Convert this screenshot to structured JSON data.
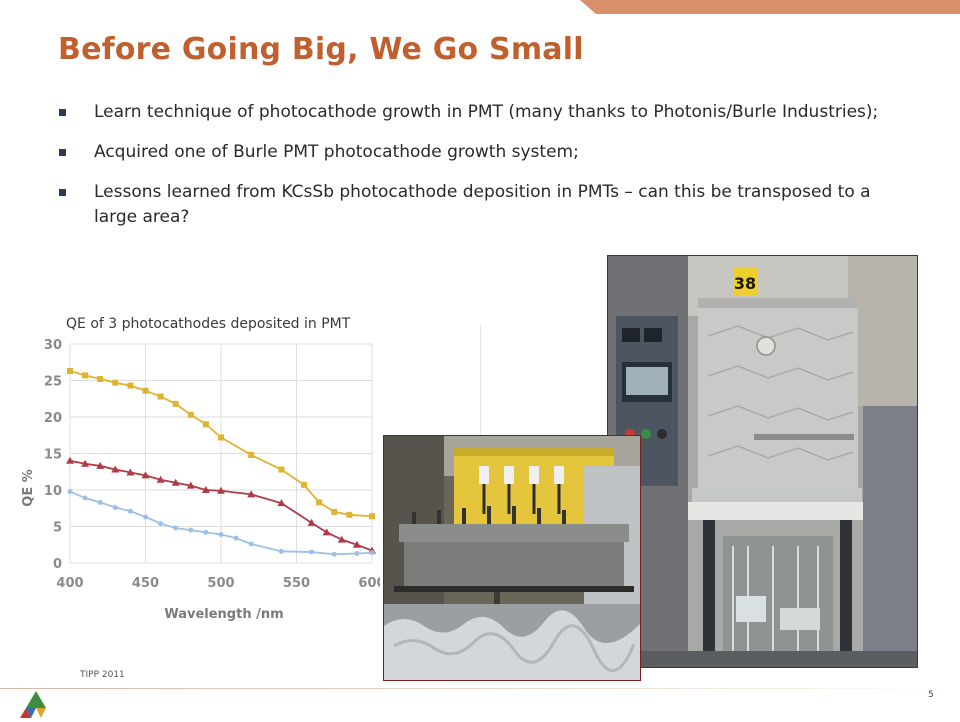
{
  "slide": {
    "title": "Before Going Big, We Go Small",
    "bullets": [
      "Learn technique of photocathode growth in PMT (many thanks to Photonis/Burle Industries);",
      "Acquired one of Burle PMT photocathode growth system;",
      "Lessons learned from KCsSb photocathode deposition in PMTs – can this be transposed to a large area?"
    ],
    "photo_label": "38",
    "footer": "TIPP 2011",
    "page_number": "5",
    "accent_color": "#c1602f"
  },
  "chart_data": {
    "type": "line",
    "caption": "QE of 3 photocathodes deposited in PMT",
    "xlabel": "Wavelength /nm",
    "ylabel": "QE %",
    "xlim": [
      400,
      600
    ],
    "ylim": [
      0,
      30
    ],
    "xticks": [
      400,
      450,
      500,
      550,
      600
    ],
    "yticks": [
      0,
      5,
      10,
      15,
      20,
      25,
      30
    ],
    "grid": true,
    "series": [
      {
        "color": "#e0b330",
        "x": [
          400,
          410,
          420,
          430,
          440,
          450,
          460,
          470,
          480,
          490,
          500,
          520,
          540,
          555,
          565,
          575,
          585,
          600
        ],
        "y": [
          26.3,
          25.7,
          25.2,
          24.7,
          24.3,
          23.6,
          22.8,
          21.8,
          20.3,
          19.0,
          17.2,
          14.8,
          12.8,
          10.7,
          8.3,
          7.0,
          6.6,
          6.4
        ]
      },
      {
        "color": "#b03a48",
        "x": [
          400,
          410,
          420,
          430,
          440,
          450,
          460,
          470,
          480,
          490,
          500,
          520,
          540,
          560,
          570,
          580,
          590,
          600
        ],
        "y": [
          14.0,
          13.6,
          13.3,
          12.8,
          12.4,
          12.0,
          11.4,
          11.0,
          10.6,
          10.0,
          9.9,
          9.4,
          8.2,
          5.5,
          4.2,
          3.2,
          2.5,
          1.7
        ]
      },
      {
        "color": "#9dc0e5",
        "x": [
          400,
          410,
          420,
          430,
          440,
          450,
          460,
          470,
          480,
          490,
          500,
          510,
          520,
          540,
          560,
          575,
          590,
          600
        ],
        "y": [
          9.8,
          8.9,
          8.3,
          7.6,
          7.1,
          6.3,
          5.4,
          4.8,
          4.5,
          4.2,
          3.9,
          3.4,
          2.6,
          1.6,
          1.5,
          1.2,
          1.3,
          1.4
        ]
      }
    ]
  }
}
